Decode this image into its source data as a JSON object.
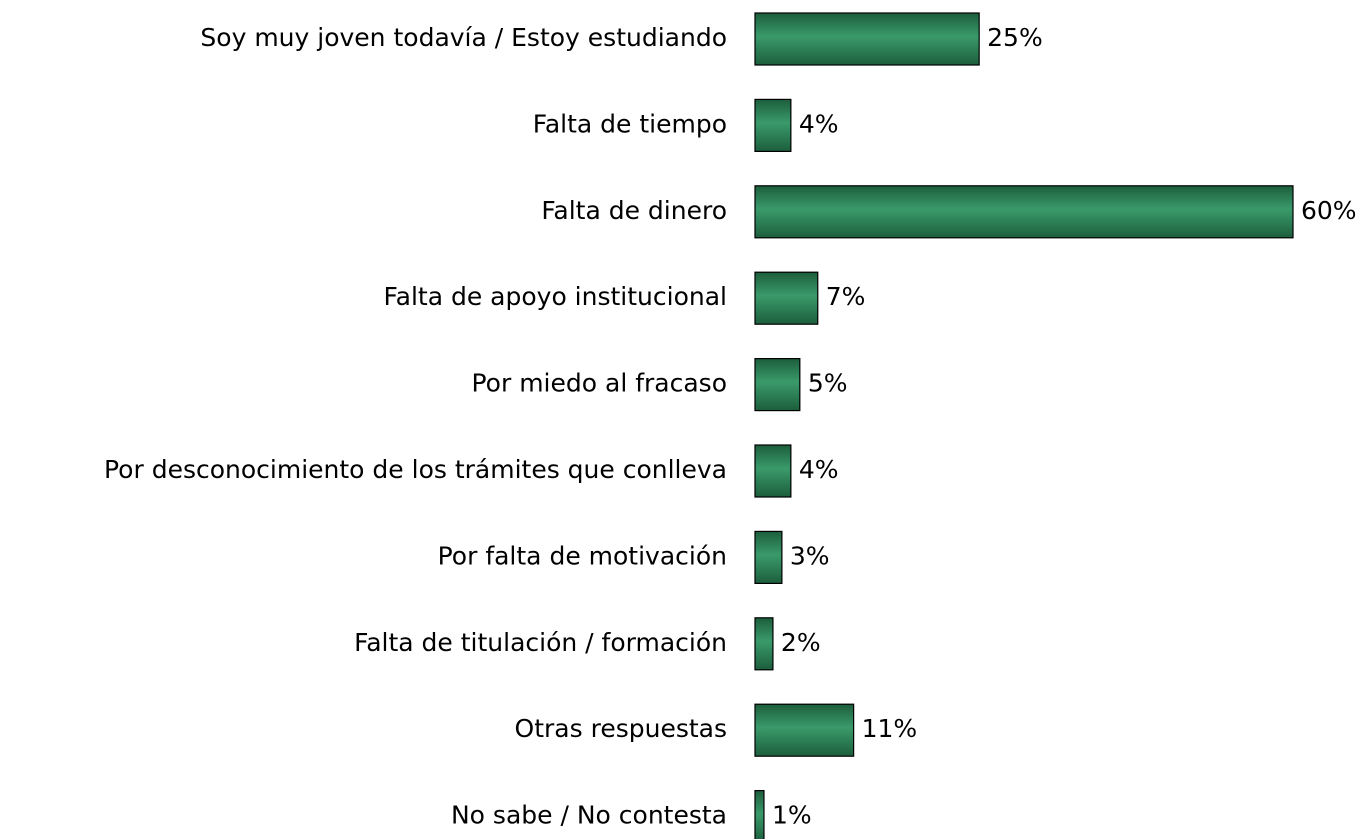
{
  "chart_data": {
    "type": "barh",
    "categories": [
      "Soy muy joven todavía / Estoy estudiando",
      "Falta de tiempo",
      "Falta de dinero",
      "Falta de apoyo institucional",
      "Por miedo al fracaso",
      "Por desconocimiento de los trámites que conlleva",
      "Por falta de motivación",
      "Falta de titulación / formación",
      "Otras respuestas",
      "No sabe / No contesta"
    ],
    "values": [
      25,
      4,
      60,
      7,
      5,
      4,
      3,
      2,
      11,
      1
    ],
    "value_labels": [
      "25%",
      "4%",
      "60%",
      "7%",
      "5%",
      "4%",
      "3%",
      "2%",
      "11%",
      "1%"
    ],
    "color": "#2e8b57"
  }
}
